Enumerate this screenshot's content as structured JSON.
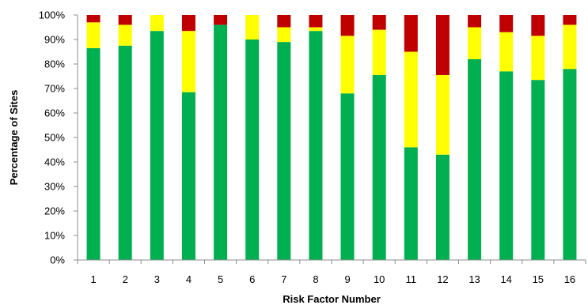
{
  "chart_data": {
    "type": "bar",
    "stacked": true,
    "xlabel": "Risk Factor Number",
    "ylabel": "Percentage of Sites",
    "ylim": [
      0,
      100
    ],
    "y_ticks": [
      0,
      10,
      20,
      30,
      40,
      50,
      60,
      70,
      80,
      90,
      100
    ],
    "y_tick_suffix": "%",
    "grid": false,
    "categories": [
      "1",
      "2",
      "3",
      "4",
      "5",
      "6",
      "7",
      "8",
      "9",
      "10",
      "11",
      "12",
      "13",
      "14",
      "15",
      "16"
    ],
    "series": [
      {
        "color": "#00b050",
        "values": [
          86.5,
          87.5,
          93.5,
          68.5,
          96,
          90,
          89,
          93.5,
          68,
          75.5,
          46,
          43,
          82,
          77,
          73.5,
          78
        ]
      },
      {
        "color": "#ffff00",
        "values": [
          10.5,
          8.5,
          6.5,
          25,
          0,
          10,
          6,
          1.5,
          23.5,
          18.5,
          39,
          32.5,
          13,
          16,
          18,
          18
        ]
      },
      {
        "color": "#c00000",
        "values": [
          3,
          4,
          0,
          6.5,
          4,
          0,
          5,
          5,
          8.5,
          6,
          15,
          24.5,
          5,
          7,
          8.5,
          4
        ]
      }
    ]
  }
}
